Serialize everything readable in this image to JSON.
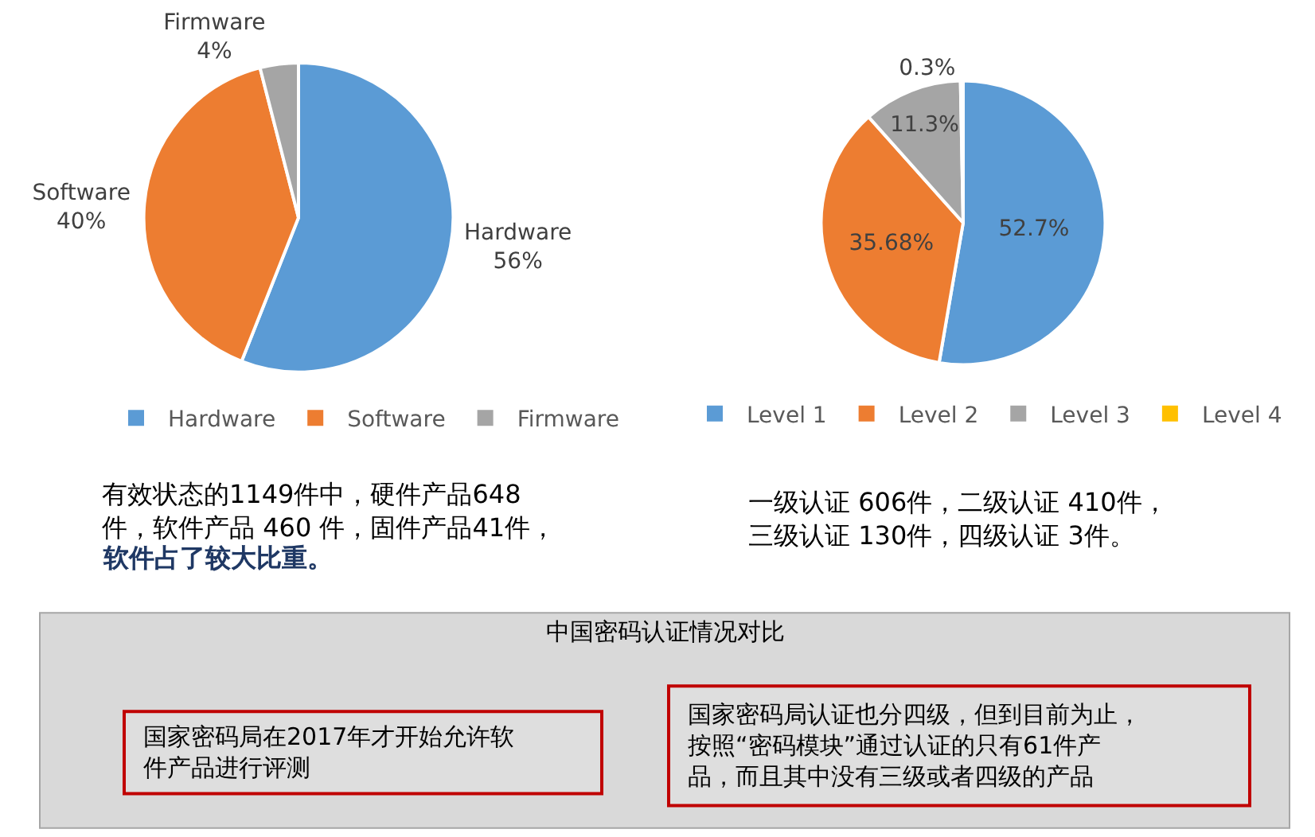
{
  "chart_data": [
    {
      "type": "pie",
      "categories": [
        "Hardware",
        "Software",
        "Firmware"
      ],
      "values": [
        56,
        40,
        4
      ],
      "colors": [
        "#5b9bd5",
        "#ed7d31",
        "#a5a5a5"
      ],
      "value_labels": [
        "56%",
        "40%",
        "4%"
      ],
      "legend": "bottom",
      "annotations": [
        "有效状态的1149件中，硬件产品648件，软件产品 460 件，固件产品41件，",
        "软件占了较大比重。"
      ]
    },
    {
      "type": "pie",
      "categories": [
        "Level 1",
        "Level 2",
        "Level 3",
        "Level 4"
      ],
      "values": [
        52.7,
        35.68,
        11.3,
        0.3
      ],
      "colors": [
        "#5b9bd5",
        "#ed7d31",
        "#a5a5a5",
        "#ffc000"
      ],
      "value_labels": [
        "52.7%",
        "35.68%",
        "11.3%",
        "0.3%"
      ],
      "legend": "bottom",
      "annotations": [
        "一级认证 606件，二级认证 410件，三级认证 130件，四级认证 3件。"
      ]
    },
    {
      "type": "other",
      "title": "中国密码认证情况对比",
      "annotations": [
        "国家密码局在2017年才开始允许软件产品进行评测",
        "国家密码局认证也分四级，但到目前为止，按照“密码模块”通过认证的只有61件产品，而且其中没有三级或者四级的产品"
      ]
    }
  ]
}
